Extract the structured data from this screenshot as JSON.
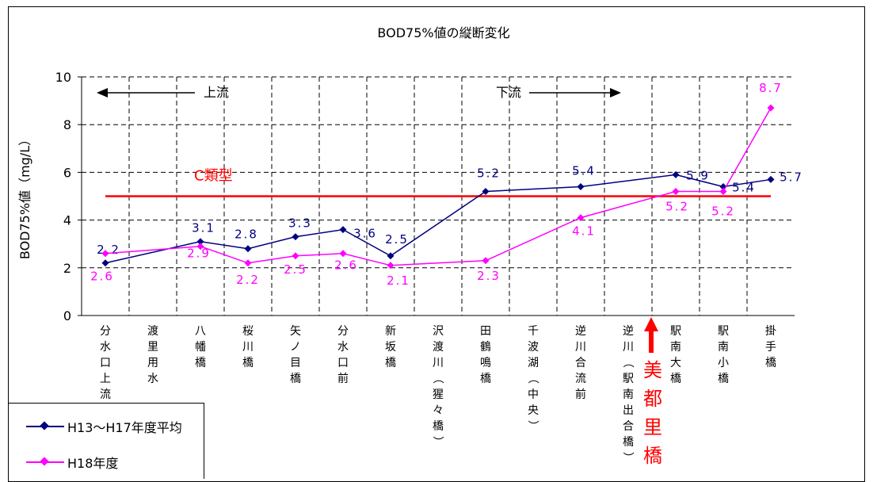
{
  "chart_data": {
    "type": "line",
    "title": "BOD75%値の縦断変化",
    "ylabel": "BOD75%値（mg/L）",
    "ylim": [
      0,
      10
    ],
    "yticks": [
      "0",
      "2",
      "4",
      "6",
      "8",
      "10"
    ],
    "grid": true,
    "legend_position": "bottom-left",
    "categories": [
      "分水口上流",
      "渡里用水",
      "八幡橋",
      "桜川橋",
      "矢ノ目橋",
      "分水口前",
      "新坂橋",
      "沢渡川（猩々橋）",
      "田鶴鳴橋",
      "千波湖（中央）",
      "逆川合流前",
      "逆川（駅南出合橋）",
      "駅南大橋",
      "駅南小橋",
      "掛手橋"
    ],
    "series": [
      {
        "name": "H13～H17年度平均",
        "color": "#000080",
        "values": [
          2.2,
          null,
          3.1,
          2.8,
          3.3,
          3.6,
          2.5,
          null,
          5.2,
          null,
          5.4,
          null,
          5.9,
          5.4,
          5.7
        ]
      },
      {
        "name": "H18年度",
        "color": "#FF00FF",
        "values": [
          2.6,
          null,
          2.9,
          2.2,
          2.5,
          2.6,
          2.1,
          null,
          2.3,
          null,
          4.1,
          null,
          5.2,
          5.2,
          8.7
        ]
      }
    ],
    "reference_line": {
      "label": "C類型",
      "value": 5,
      "color": "#FF0000"
    },
    "annotations": {
      "upstream": "上流",
      "downstream": "下流",
      "marker_label": "美都里橋",
      "marker_color": "#FF0000"
    }
  }
}
